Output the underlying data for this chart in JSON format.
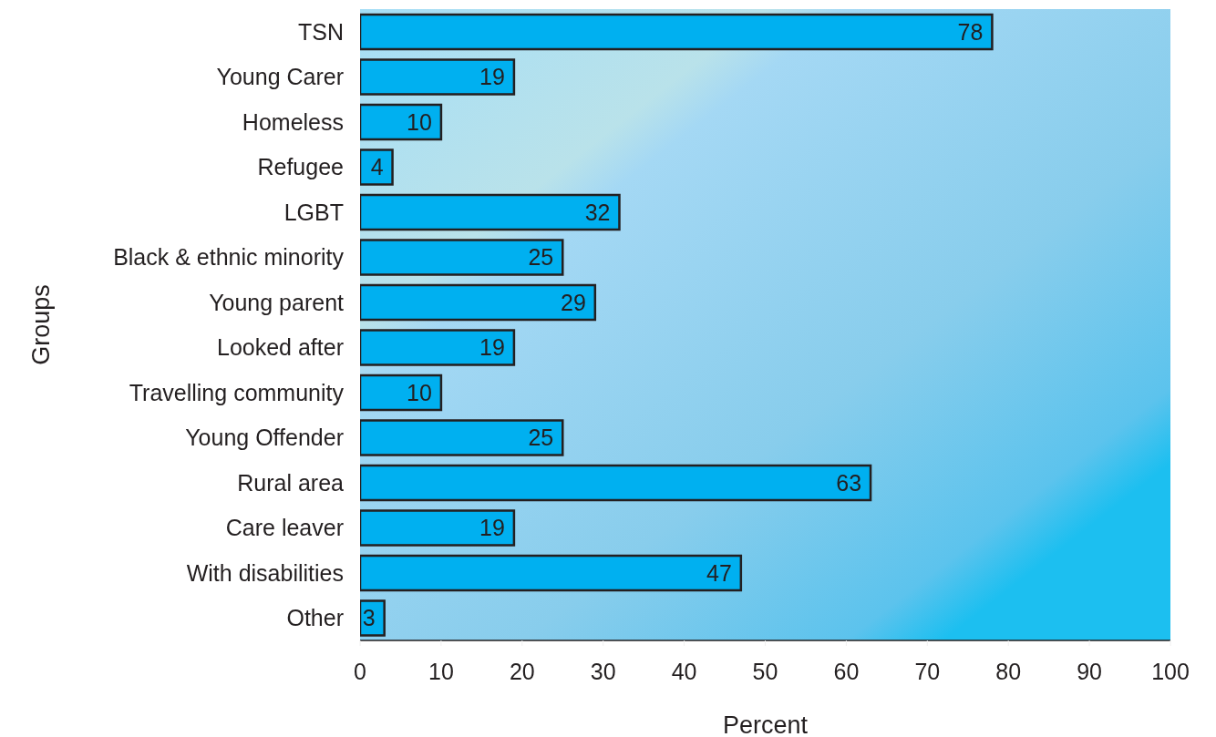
{
  "chart_data": {
    "type": "bar",
    "orientation": "horizontal",
    "xlabel": "Percent",
    "ylabel": "Groups",
    "categories": [
      "TSN",
      "Young Carer",
      "Homeless",
      "Refugee",
      "LGBT",
      "Black & ethnic minority",
      "Young parent",
      "Looked after",
      "Travelling community",
      "Young Offender",
      "Rural area",
      "Care leaver",
      "With disabilities",
      "Other"
    ],
    "values": [
      78,
      19,
      10,
      4,
      32,
      25,
      29,
      19,
      10,
      25,
      63,
      19,
      47,
      3
    ],
    "color": "#00b0f0",
    "xlim": [
      0,
      100
    ],
    "xticks": [
      0,
      10,
      20,
      30,
      40,
      50,
      60,
      70,
      80,
      90,
      100
    ],
    "data_labels": true,
    "grid": false
  }
}
